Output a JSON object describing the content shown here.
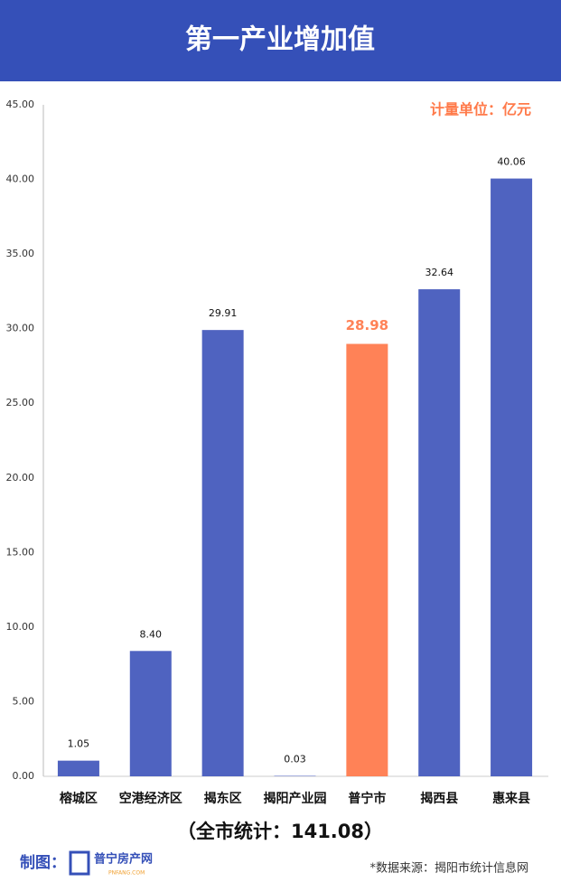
{
  "chart_data": {
    "type": "bar",
    "title": "第一产业增加值",
    "unit_note": "计量单位：亿元",
    "categories": [
      "榕城区",
      "空港经济区",
      "揭东区",
      "揭阳产业园",
      "普宁市",
      "揭西县",
      "惠来县"
    ],
    "values": [
      1.05,
      8.4,
      29.91,
      0.03,
      28.98,
      32.64,
      40.06
    ],
    "value_labels": [
      "1.05",
      "8.40",
      "29.91",
      "0.03",
      "28.98",
      "32.64",
      "40.06"
    ],
    "colors": [
      "#4f63c0",
      "#4f63c0",
      "#4f63c0",
      "#4f63c0",
      "#ff8257",
      "#4f63c0",
      "#4f63c0"
    ],
    "ylim": [
      0,
      45
    ],
    "yticks": [
      {
        "value": 0,
        "label": "0.00"
      },
      {
        "value": 5,
        "label": "5.00"
      },
      {
        "value": 10,
        "label": "10.00"
      },
      {
        "value": 15,
        "label": "15.00"
      },
      {
        "value": 20,
        "label": "20.00"
      },
      {
        "value": 25,
        "label": "25.00"
      },
      {
        "value": 30,
        "label": "30.00"
      },
      {
        "value": 35,
        "label": "35.00"
      },
      {
        "value": 40,
        "label": "40.00"
      },
      {
        "value": 45,
        "label": "45.00"
      }
    ],
    "grid": false,
    "total_note": "（全市统计：141.08）",
    "credit": "制图：",
    "logo_text": "普宁房产网",
    "logo_sub": "PNFANG.COM",
    "source": "*数据来源：揭阳市统计信息网"
  }
}
